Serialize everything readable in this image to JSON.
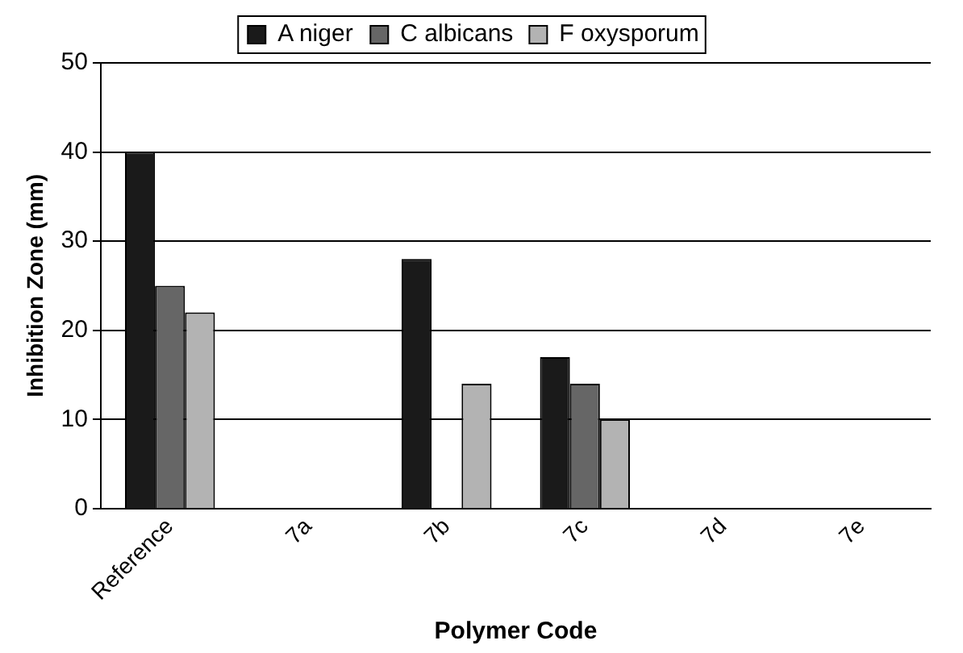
{
  "chart_data": {
    "type": "bar",
    "xlabel": "Polymer Code",
    "ylabel": "Inhibition Zone (mm)",
    "categories": [
      "Reference",
      "7a",
      "7b",
      "7c",
      "7d",
      "7e"
    ],
    "series": [
      {
        "name": "A niger",
        "color": "#1a1a1a",
        "values": [
          40,
          0,
          28,
          17,
          0,
          0
        ]
      },
      {
        "name": "C albicans",
        "color": "#666666",
        "values": [
          25,
          0,
          0,
          14,
          0,
          0
        ]
      },
      {
        "name": "F oxysporum",
        "color": "#b3b3b3",
        "values": [
          22,
          0,
          14,
          10,
          0,
          0
        ]
      }
    ],
    "ylim": [
      0,
      50
    ],
    "yticks": [
      0,
      10,
      20,
      30,
      40,
      50
    ],
    "grid": "y",
    "legend": "top"
  }
}
